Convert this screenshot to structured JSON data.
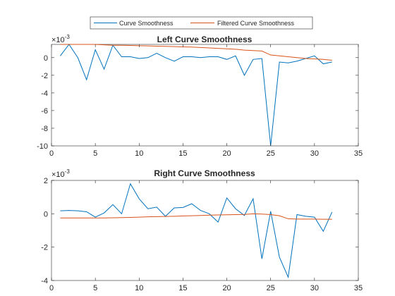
{
  "legend": {
    "location": "top-center",
    "entries": [
      {
        "label": "Curve Smoothness",
        "color": "#0072bd"
      },
      {
        "label": "Filtered Curve Smoothness",
        "color": "#d95319"
      }
    ]
  },
  "chart_data": [
    {
      "type": "line",
      "title": "Left Curve Smoothness",
      "xlabel": "",
      "ylabel": "",
      "xlim": [
        0,
        35
      ],
      "ylim": [
        -10,
        1.5
      ],
      "x_ticks": [
        0,
        5,
        10,
        15,
        20,
        25,
        30,
        35
      ],
      "y_ticks": [
        -10,
        -8,
        -6,
        -4,
        -2,
        0
      ],
      "y_exponent_label": "×10⁻³",
      "x_exponent_base": "×10",
      "x_exponent_power": "-3",
      "grid": false,
      "x": [
        1,
        2,
        3,
        4,
        5,
        6,
        7,
        8,
        9,
        10,
        11,
        12,
        13,
        14,
        15,
        16,
        17,
        18,
        19,
        20,
        21,
        22,
        23,
        24,
        25,
        26,
        27,
        28,
        29,
        30,
        31,
        32
      ],
      "series": [
        {
          "name": "Curve Smoothness",
          "color": "#0072bd",
          "values": [
            0.2,
            1.5,
            0.0,
            -2.5,
            0.9,
            -1.3,
            1.4,
            0.1,
            0.1,
            -0.1,
            0.0,
            0.5,
            0.0,
            -0.4,
            0.1,
            0.1,
            0.0,
            0.1,
            0.1,
            -0.2,
            0.2,
            -2.0,
            -0.2,
            -0.1,
            -10.0,
            -0.5,
            -0.6,
            -0.4,
            -0.1,
            0.2,
            -0.7,
            -0.5
          ]
        },
        {
          "name": "Filtered Curve Smoothness",
          "color": "#d95319",
          "values": [
            1.5,
            1.5,
            1.5,
            1.5,
            1.5,
            1.45,
            1.4,
            1.4,
            1.38,
            1.35,
            1.33,
            1.3,
            1.28,
            1.25,
            1.22,
            1.2,
            1.15,
            1.1,
            1.05,
            1.0,
            0.95,
            0.85,
            0.8,
            0.75,
            0.3,
            0.2,
            0.1,
            0.0,
            -0.1,
            -0.15,
            -0.2,
            -0.3
          ]
        }
      ]
    },
    {
      "type": "line",
      "title": "Right Curve Smoothness",
      "xlabel": "",
      "ylabel": "",
      "xlim": [
        0,
        35
      ],
      "ylim": [
        -4,
        2
      ],
      "x_ticks": [
        0,
        5,
        10,
        15,
        20,
        25,
        30,
        35
      ],
      "y_ticks": [
        -4,
        -2,
        0,
        2
      ],
      "x_exponent_base": "×10",
      "x_exponent_power": "-3",
      "grid": false,
      "x": [
        1,
        2,
        3,
        4,
        5,
        6,
        7,
        8,
        9,
        10,
        11,
        12,
        13,
        14,
        15,
        16,
        17,
        18,
        19,
        20,
        21,
        22,
        23,
        24,
        25,
        26,
        27,
        28,
        29,
        30,
        31,
        32
      ],
      "series": [
        {
          "name": "Curve Smoothness",
          "color": "#0072bd",
          "values": [
            0.18,
            0.2,
            0.18,
            0.12,
            -0.2,
            0.05,
            0.55,
            0.0,
            1.8,
            0.9,
            0.3,
            0.4,
            -0.15,
            0.35,
            0.38,
            0.6,
            0.2,
            0.0,
            -0.5,
            0.95,
            0.3,
            -0.1,
            0.9,
            -2.7,
            0.15,
            -2.6,
            -3.8,
            -0.05,
            -0.15,
            -0.2,
            -1.05,
            0.1
          ]
        },
        {
          "name": "Filtered Curve Smoothness",
          "color": "#d95319",
          "values": [
            -0.25,
            -0.25,
            -0.25,
            -0.25,
            -0.25,
            -0.25,
            -0.24,
            -0.23,
            -0.22,
            -0.2,
            -0.18,
            -0.17,
            -0.16,
            -0.15,
            -0.13,
            -0.12,
            -0.1,
            -0.08,
            -0.07,
            -0.06,
            -0.05,
            -0.04,
            0.0,
            -0.02,
            -0.05,
            -0.12,
            -0.3,
            -0.32,
            -0.32,
            -0.32,
            -0.33,
            -0.33
          ]
        }
      ]
    }
  ]
}
